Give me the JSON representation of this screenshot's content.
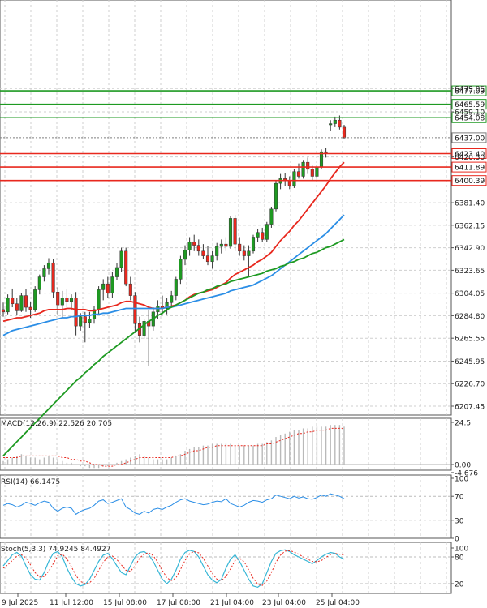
{
  "chart_data": [
    {
      "type": "candlestick",
      "panel": "price",
      "title": "",
      "xlabel": "",
      "ylabel": "",
      "y_ticks": [
        "6207.45",
        "6226.70",
        "6245.95",
        "6265.55",
        "6284.80",
        "6304.05",
        "6323.65",
        "6342.90",
        "6362.15",
        "6381.40",
        "6420.50",
        "6459.10",
        "6479.05"
      ],
      "ylim": [
        6195,
        6482
      ],
      "x_ticks": [
        "9 Jul 2025",
        "11 Jul 12:00",
        "15 Jul 08:00",
        "17 Jul 08:00",
        "21 Jul 04:00",
        "23 Jul 04:00",
        "25 Jul 04:00"
      ],
      "grid": true,
      "candles": [
        {
          "o": 6290,
          "h": 6296,
          "l": 6284,
          "c": 6288
        },
        {
          "o": 6288,
          "h": 6303,
          "l": 6286,
          "c": 6300
        },
        {
          "o": 6300,
          "h": 6308,
          "l": 6292,
          "c": 6295
        },
        {
          "o": 6295,
          "h": 6300,
          "l": 6285,
          "c": 6289
        },
        {
          "o": 6289,
          "h": 6304,
          "l": 6288,
          "c": 6302
        },
        {
          "o": 6302,
          "h": 6308,
          "l": 6288,
          "c": 6292
        },
        {
          "o": 6292,
          "h": 6297,
          "l": 6283,
          "c": 6290
        },
        {
          "o": 6290,
          "h": 6310,
          "l": 6288,
          "c": 6307
        },
        {
          "o": 6307,
          "h": 6320,
          "l": 6303,
          "c": 6318
        },
        {
          "o": 6318,
          "h": 6328,
          "l": 6314,
          "c": 6325
        },
        {
          "o": 6325,
          "h": 6334,
          "l": 6320,
          "c": 6330
        },
        {
          "o": 6330,
          "h": 6333,
          "l": 6300,
          "c": 6305
        },
        {
          "o": 6305,
          "h": 6309,
          "l": 6285,
          "c": 6294
        },
        {
          "o": 6294,
          "h": 6306,
          "l": 6283,
          "c": 6300
        },
        {
          "o": 6300,
          "h": 6308,
          "l": 6292,
          "c": 6297
        },
        {
          "o": 6297,
          "h": 6303,
          "l": 6290,
          "c": 6300
        },
        {
          "o": 6300,
          "h": 6305,
          "l": 6268,
          "c": 6276
        },
        {
          "o": 6276,
          "h": 6287,
          "l": 6272,
          "c": 6284
        },
        {
          "o": 6284,
          "h": 6288,
          "l": 6262,
          "c": 6279
        },
        {
          "o": 6279,
          "h": 6288,
          "l": 6274,
          "c": 6282
        },
        {
          "o": 6282,
          "h": 6293,
          "l": 6278,
          "c": 6290
        },
        {
          "o": 6290,
          "h": 6310,
          "l": 6286,
          "c": 6307
        },
        {
          "o": 6307,
          "h": 6316,
          "l": 6298,
          "c": 6312
        },
        {
          "o": 6312,
          "h": 6318,
          "l": 6300,
          "c": 6304
        },
        {
          "o": 6304,
          "h": 6322,
          "l": 6300,
          "c": 6318
        },
        {
          "o": 6318,
          "h": 6330,
          "l": 6315,
          "c": 6326
        },
        {
          "o": 6326,
          "h": 6343,
          "l": 6322,
          "c": 6340
        },
        {
          "o": 6340,
          "h": 6343,
          "l": 6310,
          "c": 6312
        },
        {
          "o": 6312,
          "h": 6318,
          "l": 6298,
          "c": 6302
        },
        {
          "o": 6302,
          "h": 6305,
          "l": 6270,
          "c": 6278
        },
        {
          "o": 6278,
          "h": 6284,
          "l": 6262,
          "c": 6268
        },
        {
          "o": 6268,
          "h": 6282,
          "l": 6265,
          "c": 6280
        },
        {
          "o": 6280,
          "h": 6290,
          "l": 6242,
          "c": 6276
        },
        {
          "o": 6276,
          "h": 6292,
          "l": 6272,
          "c": 6288
        },
        {
          "o": 6288,
          "h": 6298,
          "l": 6282,
          "c": 6293
        },
        {
          "o": 6293,
          "h": 6302,
          "l": 6286,
          "c": 6291
        },
        {
          "o": 6291,
          "h": 6300,
          "l": 6286,
          "c": 6296
        },
        {
          "o": 6296,
          "h": 6306,
          "l": 6292,
          "c": 6302
        },
        {
          "o": 6302,
          "h": 6318,
          "l": 6298,
          "c": 6316
        },
        {
          "o": 6316,
          "h": 6336,
          "l": 6312,
          "c": 6333
        },
        {
          "o": 6333,
          "h": 6345,
          "l": 6328,
          "c": 6341
        },
        {
          "o": 6341,
          "h": 6352,
          "l": 6336,
          "c": 6348
        },
        {
          "o": 6348,
          "h": 6354,
          "l": 6340,
          "c": 6345
        },
        {
          "o": 6345,
          "h": 6350,
          "l": 6336,
          "c": 6340
        },
        {
          "o": 6340,
          "h": 6346,
          "l": 6333,
          "c": 6336
        },
        {
          "o": 6336,
          "h": 6344,
          "l": 6328,
          "c": 6331
        },
        {
          "o": 6331,
          "h": 6340,
          "l": 6325,
          "c": 6336
        },
        {
          "o": 6336,
          "h": 6347,
          "l": 6332,
          "c": 6344
        },
        {
          "o": 6344,
          "h": 6350,
          "l": 6338,
          "c": 6346
        },
        {
          "o": 6346,
          "h": 6352,
          "l": 6340,
          "c": 6344
        },
        {
          "o": 6344,
          "h": 6370,
          "l": 6342,
          "c": 6368
        },
        {
          "o": 6368,
          "h": 6371,
          "l": 6340,
          "c": 6346
        },
        {
          "o": 6346,
          "h": 6352,
          "l": 6336,
          "c": 6340
        },
        {
          "o": 6340,
          "h": 6345,
          "l": 6332,
          "c": 6336
        },
        {
          "o": 6336,
          "h": 6345,
          "l": 6318,
          "c": 6340
        },
        {
          "o": 6340,
          "h": 6354,
          "l": 6338,
          "c": 6352
        },
        {
          "o": 6352,
          "h": 6359,
          "l": 6348,
          "c": 6356
        },
        {
          "o": 6356,
          "h": 6360,
          "l": 6348,
          "c": 6350
        },
        {
          "o": 6350,
          "h": 6365,
          "l": 6348,
          "c": 6363
        },
        {
          "o": 6363,
          "h": 6378,
          "l": 6360,
          "c": 6376
        },
        {
          "o": 6376,
          "h": 6400,
          "l": 6374,
          "c": 6398
        },
        {
          "o": 6398,
          "h": 6406,
          "l": 6393,
          "c": 6402
        },
        {
          "o": 6402,
          "h": 6407,
          "l": 6396,
          "c": 6400
        },
        {
          "o": 6400,
          "h": 6404,
          "l": 6393,
          "c": 6396
        },
        {
          "o": 6396,
          "h": 6410,
          "l": 6394,
          "c": 6408
        },
        {
          "o": 6408,
          "h": 6415,
          "l": 6402,
          "c": 6404
        },
        {
          "o": 6404,
          "h": 6418,
          "l": 6402,
          "c": 6416
        },
        {
          "o": 6416,
          "h": 6420,
          "l": 6406,
          "c": 6410
        },
        {
          "o": 6410,
          "h": 6413,
          "l": 6400,
          "c": 6404
        },
        {
          "o": 6404,
          "h": 6414,
          "l": 6401,
          "c": 6412
        },
        {
          "o": 6412,
          "h": 6427,
          "l": 6410,
          "c": 6425
        },
        {
          "o": 6425,
          "h": 6428,
          "l": 6420,
          "c": 6424
        },
        {
          "o": 6448,
          "h": 6452,
          "l": 6443,
          "c": 6449
        },
        {
          "o": 6449,
          "h": 6455,
          "l": 6446,
          "c": 6452
        },
        {
          "o": 6452,
          "h": 6456,
          "l": 6444,
          "c": 6446
        },
        {
          "o": 6446,
          "h": 6448,
          "l": 6436,
          "c": 6437
        }
      ],
      "moving_averages": [
        {
          "color": "#e8281e",
          "values": [
            6280,
            6281,
            6282,
            6283,
            6283,
            6284,
            6285,
            6286,
            6287,
            6289,
            6290,
            6290,
            6290,
            6290,
            6291,
            6291,
            6290,
            6290,
            6290,
            6289,
            6289,
            6290,
            6291,
            6292,
            6293,
            6294,
            6296,
            6297,
            6297,
            6296,
            6295,
            6294,
            6292,
            6291,
            6291,
            6291,
            6292,
            6293,
            6294,
            6296,
            6298,
            6301,
            6303,
            6304,
            6305,
            6306,
            6307,
            6309,
            6311,
            6313,
            6317,
            6320,
            6322,
            6324,
            6326,
            6328,
            6331,
            6333,
            6336,
            6339,
            6344,
            6349,
            6353,
            6357,
            6362,
            6366,
            6371,
            6376,
            6381,
            6386,
            6391,
            6396,
            6402,
            6407,
            6412,
            6416
          ]
        },
        {
          "color": "#2b8ee6",
          "values": [
            6268,
            6270,
            6272,
            6273,
            6274,
            6275,
            6276,
            6277,
            6278,
            6279,
            6280,
            6281,
            6282,
            6283,
            6283,
            6284,
            6284,
            6285,
            6285,
            6285,
            6286,
            6286,
            6287,
            6287,
            6288,
            6289,
            6290,
            6291,
            6291,
            6291,
            6291,
            6291,
            6291,
            6291,
            6291,
            6291,
            6292,
            6292,
            6293,
            6294,
            6295,
            6296,
            6297,
            6298,
            6299,
            6300,
            6301,
            6302,
            6303,
            6304,
            6306,
            6307,
            6308,
            6309,
            6310,
            6311,
            6313,
            6315,
            6317,
            6319,
            6322,
            6325,
            6328,
            6331,
            6334,
            6337,
            6340,
            6343,
            6346,
            6349,
            6352,
            6355,
            6359,
            6363,
            6367,
            6371
          ]
        },
        {
          "color": "#1e9a22",
          "values": [
            6165,
            6169,
            6173,
            6177,
            6181,
            6185,
            6189,
            6193,
            6197,
            6201,
            6205,
            6209,
            6213,
            6217,
            6221,
            6225,
            6229,
            6232,
            6236,
            6239,
            6243,
            6246,
            6250,
            6253,
            6256,
            6259,
            6262,
            6265,
            6268,
            6271,
            6274,
            6277,
            6280,
            6282,
            6285,
            6287,
            6290,
            6292,
            6294,
            6296,
            6298,
            6300,
            6302,
            6304,
            6305,
            6307,
            6308,
            6310,
            6311,
            6312,
            6314,
            6315,
            6316,
            6317,
            6318,
            6319,
            6320,
            6321,
            6323,
            6324,
            6325,
            6327,
            6328,
            6330,
            6331,
            6333,
            6334,
            6336,
            6338,
            6339,
            6341,
            6343,
            6344,
            6346,
            6348,
            6350
          ]
        }
      ],
      "horizontal_levels": [
        {
          "value": "6477.09",
          "color": "#1e9a22"
        },
        {
          "value": "6465.59",
          "color": "#1e9a22"
        },
        {
          "value": "6454.08",
          "color": "#1e9a22"
        },
        {
          "value": "6437.00",
          "color": "#7f7f7f"
        },
        {
          "value": "6423.40",
          "color": "#e8281e"
        },
        {
          "value": "6411.89",
          "color": "#e8281e"
        },
        {
          "value": "6400.39",
          "color": "#e8281e"
        }
      ]
    },
    {
      "type": "bar",
      "panel": "macd",
      "label": "MACD(12,26,9) 22.526 20.705",
      "y_ticks": [
        "24.5",
        "0.00",
        "-4.676"
      ],
      "ylim": [
        -4.676,
        26
      ],
      "histogram": [
        2,
        3,
        4,
        5,
        6,
        5,
        4,
        4,
        3,
        4,
        5,
        4,
        3,
        2,
        1,
        1,
        0,
        -1,
        -1,
        -2,
        -2,
        -2,
        -1,
        -1,
        0,
        1,
        2,
        3,
        4,
        5,
        6,
        5,
        4,
        3,
        3,
        3,
        3,
        4,
        5,
        6,
        8,
        9,
        10,
        10,
        11,
        11,
        12,
        12,
        12,
        12,
        12,
        11,
        11,
        11,
        11,
        11,
        12,
        12,
        13,
        14,
        16,
        17,
        18,
        19,
        20,
        20,
        21,
        21,
        22,
        22,
        22,
        22,
        23,
        23,
        23,
        22
      ],
      "signal": [
        4,
        4,
        4,
        4,
        5,
        5,
        5,
        5,
        5,
        5,
        5,
        5,
        5,
        4,
        4,
        3,
        3,
        2,
        2,
        1,
        0,
        0,
        -1,
        -1,
        -1,
        0,
        0,
        1,
        2,
        3,
        4,
        4,
        4,
        4,
        4,
        4,
        4,
        4,
        5,
        5,
        6,
        7,
        8,
        8,
        9,
        10,
        10,
        11,
        11,
        11,
        11,
        11,
        11,
        11,
        11,
        11,
        11,
        11,
        12,
        12,
        13,
        14,
        15,
        16,
        17,
        18,
        18,
        19,
        19,
        20,
        20,
        20,
        21,
        21,
        21,
        21
      ]
    },
    {
      "type": "line",
      "panel": "rsi",
      "label": "RSI(14) 66.1475",
      "y_ticks": [
        "100",
        "70",
        "30",
        "0"
      ],
      "ylim": [
        0,
        100
      ],
      "values": [
        55,
        58,
        56,
        52,
        55,
        60,
        58,
        55,
        59,
        62,
        60,
        50,
        45,
        50,
        52,
        50,
        40,
        45,
        48,
        50,
        55,
        62,
        64,
        58,
        60,
        63,
        66,
        52,
        48,
        42,
        40,
        45,
        42,
        48,
        50,
        48,
        52,
        55,
        60,
        64,
        66,
        62,
        60,
        58,
        56,
        57,
        60,
        62,
        61,
        66,
        58,
        55,
        52,
        55,
        60,
        63,
        62,
        60,
        64,
        66,
        72,
        70,
        68,
        66,
        70,
        67,
        69,
        66,
        65,
        68,
        72,
        70,
        74,
        72,
        70,
        66
      ]
    },
    {
      "type": "line",
      "panel": "stochastic",
      "label": "Stoch(5,3,3) 74.9245 84.4927",
      "y_ticks": [
        "100",
        "80",
        "20"
      ],
      "ylim": [
        0,
        100
      ],
      "k": [
        60,
        72,
        85,
        90,
        82,
        60,
        40,
        30,
        28,
        45,
        70,
        88,
        92,
        80,
        55,
        35,
        20,
        15,
        18,
        30,
        50,
        70,
        84,
        88,
        76,
        60,
        45,
        40,
        60,
        80,
        90,
        92,
        85,
        70,
        50,
        30,
        20,
        30,
        50,
        75,
        90,
        95,
        92,
        80,
        60,
        40,
        28,
        22,
        30,
        55,
        75,
        85,
        70,
        50,
        30,
        15,
        12,
        20,
        45,
        70,
        88,
        94,
        96,
        92,
        85,
        80,
        75,
        70,
        65,
        72,
        80,
        86,
        90,
        88,
        80,
        75
      ],
      "d": [
        55,
        62,
        72,
        82,
        85,
        78,
        62,
        45,
        35,
        36,
        48,
        65,
        83,
        86,
        76,
        58,
        38,
        25,
        20,
        22,
        32,
        50,
        68,
        80,
        82,
        74,
        62,
        50,
        48,
        60,
        77,
        87,
        89,
        83,
        68,
        50,
        33,
        27,
        33,
        52,
        72,
        87,
        92,
        89,
        77,
        60,
        43,
        30,
        27,
        36,
        53,
        72,
        77,
        69,
        51,
        32,
        19,
        16,
        26,
        45,
        68,
        84,
        93,
        94,
        91,
        86,
        80,
        75,
        70,
        69,
        72,
        79,
        85,
        88,
        86,
        84
      ]
    }
  ]
}
